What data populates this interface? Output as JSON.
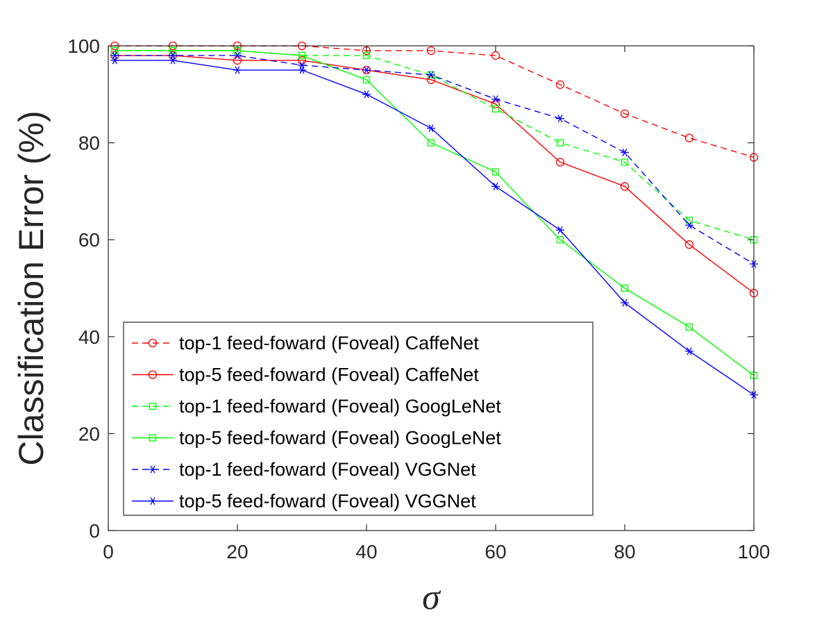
{
  "chart_data": {
    "type": "line",
    "title": "",
    "xlabel": "σ",
    "ylabel": "Classification Error (%)",
    "xlim": [
      0,
      100
    ],
    "ylim": [
      0,
      100
    ],
    "xticks": [
      0,
      20,
      40,
      60,
      80,
      100
    ],
    "yticks": [
      0,
      20,
      40,
      60,
      80,
      100
    ],
    "grid": false,
    "legend_position": "bottom-left",
    "x": [
      1,
      10,
      20,
      30,
      40,
      50,
      60,
      70,
      80,
      90,
      100
    ],
    "series": [
      {
        "name": "top-1 feed-foward (Foveal) CaffeNet",
        "color": "#ff0000",
        "line_style": "dashed",
        "marker": "circle",
        "values": [
          100,
          100,
          100,
          100,
          99,
          99,
          98,
          92,
          86,
          81,
          77
        ]
      },
      {
        "name": "top-5 feed-foward (Foveal) CaffeNet",
        "color": "#ff0000",
        "line_style": "solid",
        "marker": "circle",
        "values": [
          98,
          98,
          97,
          97,
          95,
          93,
          88,
          76,
          71,
          59,
          49
        ]
      },
      {
        "name": "top-1 feed-foward (Foveal) GoogLeNet",
        "color": "#00ff00",
        "line_style": "dashed",
        "marker": "square",
        "values": [
          99,
          99,
          99,
          98,
          98,
          94,
          87,
          80,
          76,
          64,
          60
        ]
      },
      {
        "name": "top-5 feed-foward (Foveal) GoogLeNet",
        "color": "#00ff00",
        "line_style": "solid",
        "marker": "square",
        "values": [
          99,
          99,
          99,
          98,
          93,
          80,
          74,
          60,
          50,
          42,
          32
        ]
      },
      {
        "name": "top-1 feed-foward (Foveal) VGGNet",
        "color": "#0000ff",
        "line_style": "dashed",
        "marker": "asterisk",
        "values": [
          98,
          98,
          98,
          96,
          95,
          94,
          89,
          85,
          78,
          63,
          55
        ]
      },
      {
        "name": "top-5 feed-foward (Foveal) VGGNet",
        "color": "#0000ff",
        "line_style": "solid",
        "marker": "asterisk",
        "values": [
          97,
          97,
          95,
          95,
          90,
          83,
          71,
          62,
          47,
          37,
          28
        ]
      }
    ]
  }
}
